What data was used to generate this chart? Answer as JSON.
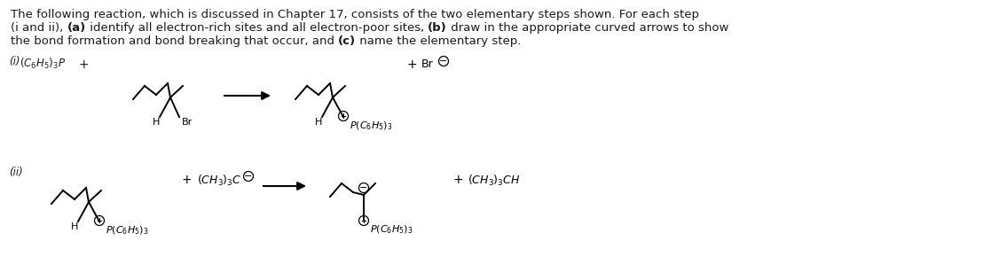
{
  "bg_color": "#ffffff",
  "fig_width": 11.26,
  "fig_height": 2.98,
  "line1": "The following reaction, which is discussed in Chapter 17, consists of the two elementary steps shown. For each step",
  "line2_parts": [
    [
      "(i and ii), ",
      false
    ],
    [
      "(a)",
      true
    ],
    [
      " identify all electron-rich sites and all electron-poor sites, ",
      false
    ],
    [
      "(b)",
      true
    ],
    [
      " draw in the appropriate curved arrows to show",
      false
    ]
  ],
  "line3_parts": [
    [
      "the bond formation and bond breaking that occur, and ",
      false
    ],
    [
      "(c)",
      true
    ],
    [
      " name the elementary step.",
      false
    ]
  ],
  "text_fontsize": 9.5,
  "label_fontsize": 8.5,
  "chem_fontsize": 8.0,
  "lw": 1.4
}
